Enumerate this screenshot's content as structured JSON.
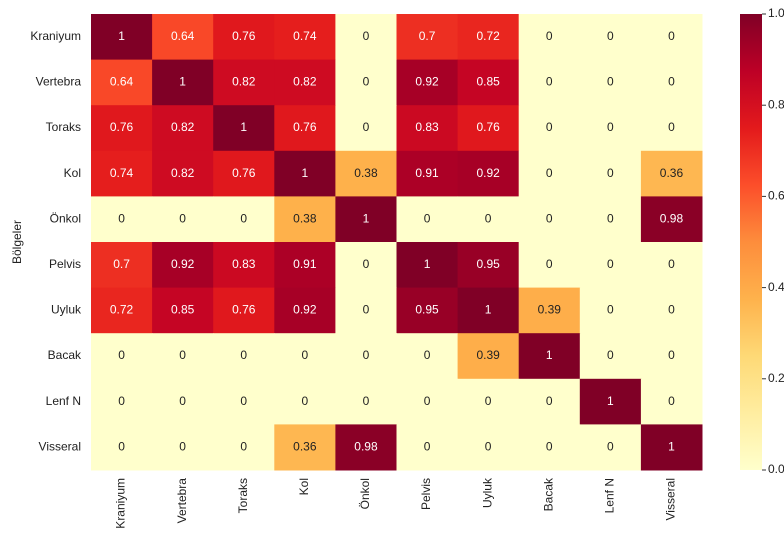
{
  "chart_data": {
    "type": "heatmap",
    "y_label": "Bölgeler",
    "x_categories": [
      "Kraniyum",
      "Vertebra",
      "Toraks",
      "Kol",
      "Önkol",
      "Pelvis",
      "Uyluk",
      "Bacak",
      "Lenf N",
      "Visseral"
    ],
    "y_categories": [
      "Kraniyum",
      "Vertebra",
      "Toraks",
      "Kol",
      "Önkol",
      "Pelvis",
      "Uyluk",
      "Bacak",
      "Lenf N",
      "Visseral"
    ],
    "values": [
      [
        1,
        0.64,
        0.76,
        0.74,
        0,
        0.7,
        0.72,
        0,
        0,
        0
      ],
      [
        0.64,
        1,
        0.82,
        0.82,
        0,
        0.92,
        0.85,
        0,
        0,
        0
      ],
      [
        0.76,
        0.82,
        1,
        0.76,
        0,
        0.83,
        0.76,
        0,
        0,
        0
      ],
      [
        0.74,
        0.82,
        0.76,
        1,
        0.38,
        0.91,
        0.92,
        0,
        0,
        0.36
      ],
      [
        0,
        0,
        0,
        0.38,
        1,
        0,
        0,
        0,
        0,
        0.98
      ],
      [
        0.7,
        0.92,
        0.83,
        0.91,
        0,
        1,
        0.95,
        0,
        0,
        0
      ],
      [
        0.72,
        0.85,
        0.76,
        0.92,
        0,
        0.95,
        1,
        0.39,
        0,
        0
      ],
      [
        0,
        0,
        0,
        0,
        0,
        0,
        0.39,
        1,
        0,
        0
      ],
      [
        0,
        0,
        0,
        0,
        0,
        0,
        0,
        0,
        1,
        0
      ],
      [
        0,
        0,
        0,
        0.36,
        0.98,
        0,
        0,
        0,
        0,
        1
      ]
    ],
    "colors": [
      "#ffffcc",
      "#ffeda0",
      "#fed976",
      "#feb24c",
      "#fd8d3c",
      "#fc4e2a",
      "#e31a1c",
      "#bd0026",
      "#800026"
    ],
    "clim": [
      0,
      1
    ],
    "cticks": [
      {
        "value": 0,
        "label": "0.0"
      },
      {
        "value": 0.2,
        "label": "0.2"
      },
      {
        "value": 0.4,
        "label": "0.4"
      },
      {
        "value": 0.6,
        "label": "0.6"
      },
      {
        "value": 0.8,
        "label": "0.8"
      },
      {
        "value": 1,
        "label": "1.0"
      }
    ]
  }
}
